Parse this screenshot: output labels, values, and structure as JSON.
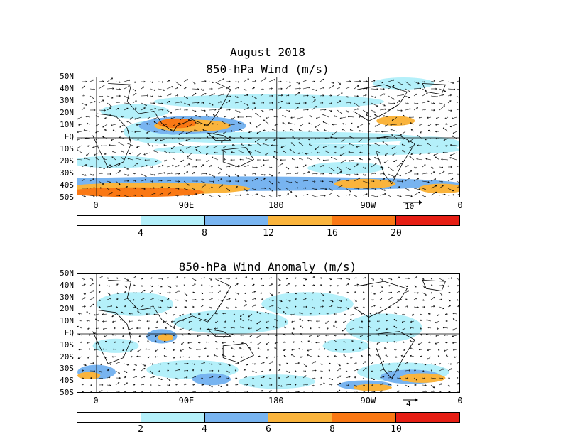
{
  "main_title": "August 2018",
  "lat_labels": [
    "50N",
    "40N",
    "30N",
    "20N",
    "10N",
    "EQ",
    "10S",
    "20S",
    "30S",
    "40S",
    "50S"
  ],
  "lon_labels": [
    "0",
    "90E",
    "180",
    "90W",
    "0"
  ],
  "colors": {
    "bin0": "#ffffff",
    "bin1": "#b4f0fa",
    "bin2": "#78b4f0",
    "bin3": "#fab43c",
    "bin4": "#fa7814",
    "bin5": "#e61e14",
    "land_line": "#000000"
  },
  "panels": [
    {
      "title": "850-hPa Wind (m/s)",
      "ref_vector_label": "10",
      "colorbar_ticks": [
        "4",
        "8",
        "12",
        "16",
        "20"
      ]
    },
    {
      "title": "850-hPa Wind Anomaly (m/s)",
      "ref_vector_label": "4",
      "colorbar_ticks": [
        "2",
        "4",
        "6",
        "8",
        "10"
      ]
    }
  ]
}
